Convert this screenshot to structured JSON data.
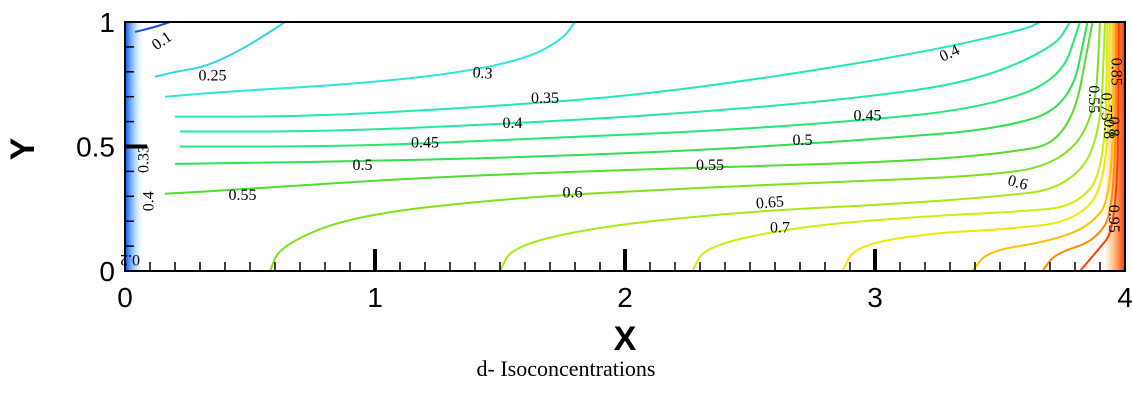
{
  "chart_data": {
    "type": "contour",
    "title": "",
    "xlabel": "X",
    "ylabel": "Y",
    "xlim": [
      0,
      4
    ],
    "ylim": [
      0,
      1
    ],
    "x_ticks": [
      "0",
      "1",
      "2",
      "3",
      "4"
    ],
    "y_ticks": [
      "0",
      "0.5",
      "1"
    ],
    "colormap": [
      "#0000cc",
      "#0080ff",
      "#00e0ff",
      "#00ff80",
      "#40e020",
      "#c8f000",
      "#ffe000",
      "#ff8000",
      "#ff2000"
    ],
    "contours": [
      {
        "level": "0.1",
        "color": "#1f4fe0",
        "points": [
          [
            0.04,
            0.96
          ],
          [
            0.12,
            0.98
          ],
          [
            0.18,
            1.0
          ]
        ]
      },
      {
        "level": "0.25",
        "color": "#2fd4e8",
        "points": [
          [
            0.12,
            0.78
          ],
          [
            0.2,
            0.8
          ],
          [
            0.32,
            0.82
          ],
          [
            0.45,
            0.88
          ],
          [
            0.58,
            0.96
          ],
          [
            0.64,
            1.0
          ]
        ]
      },
      {
        "level": "0.3",
        "color": "#2de6d8",
        "points": [
          [
            0.16,
            0.7
          ],
          [
            0.4,
            0.72
          ],
          [
            0.9,
            0.75
          ],
          [
            1.3,
            0.79
          ],
          [
            1.6,
            0.85
          ],
          [
            1.75,
            0.93
          ],
          [
            1.8,
            1.0
          ]
        ]
      },
      {
        "level": "0.35",
        "color": "#22e8b8",
        "points": [
          [
            0.2,
            0.62
          ],
          [
            0.7,
            0.62
          ],
          [
            1.3,
            0.65
          ],
          [
            2.0,
            0.7
          ],
          [
            2.6,
            0.78
          ],
          [
            3.2,
            0.88
          ],
          [
            3.6,
            0.97
          ],
          [
            3.66,
            1.0
          ]
        ]
      },
      {
        "level": "0.4",
        "color": "#22ea98",
        "points": [
          [
            0.22,
            0.56
          ],
          [
            0.8,
            0.56
          ],
          [
            1.5,
            0.59
          ],
          [
            2.2,
            0.63
          ],
          [
            2.9,
            0.69
          ],
          [
            3.4,
            0.76
          ],
          [
            3.72,
            0.9
          ],
          [
            3.78,
            1.0
          ]
        ]
      },
      {
        "level": "0.45",
        "color": "#22e878",
        "points": [
          [
            0.22,
            0.5
          ],
          [
            0.9,
            0.5
          ],
          [
            1.6,
            0.53
          ],
          [
            2.3,
            0.56
          ],
          [
            2.9,
            0.6
          ],
          [
            3.4,
            0.65
          ],
          [
            3.74,
            0.76
          ],
          [
            3.82,
            1.0
          ]
        ]
      },
      {
        "level": "0.5",
        "color": "#30e050",
        "points": [
          [
            0.2,
            0.43
          ],
          [
            0.9,
            0.44
          ],
          [
            1.7,
            0.46
          ],
          [
            2.4,
            0.49
          ],
          [
            3.0,
            0.53
          ],
          [
            3.5,
            0.57
          ],
          [
            3.78,
            0.66
          ],
          [
            3.85,
            1.0
          ]
        ]
      },
      {
        "level": "0.55",
        "color": "#50dd30",
        "points": [
          [
            0.16,
            0.31
          ],
          [
            0.5,
            0.33
          ],
          [
            1.1,
            0.37
          ],
          [
            1.8,
            0.4
          ],
          [
            2.5,
            0.42
          ],
          [
            3.1,
            0.44
          ],
          [
            3.5,
            0.47
          ],
          [
            3.78,
            0.52
          ],
          [
            3.87,
            1.0
          ]
        ]
      },
      {
        "level": "0.6",
        "color": "#80e020",
        "points": [
          [
            0.58,
            0.0
          ],
          [
            0.62,
            0.1
          ],
          [
            0.9,
            0.22
          ],
          [
            1.5,
            0.29
          ],
          [
            2.2,
            0.33
          ],
          [
            2.9,
            0.36
          ],
          [
            3.4,
            0.38
          ],
          [
            3.72,
            0.42
          ],
          [
            3.88,
            0.6
          ],
          [
            3.9,
            1.0
          ]
        ]
      },
      {
        "level": "0.65",
        "color": "#a8e818",
        "points": [
          [
            1.5,
            0.0
          ],
          [
            1.55,
            0.1
          ],
          [
            1.9,
            0.18
          ],
          [
            2.5,
            0.24
          ],
          [
            3.1,
            0.27
          ],
          [
            3.5,
            0.3
          ],
          [
            3.75,
            0.33
          ],
          [
            3.9,
            0.5
          ],
          [
            3.92,
            1.0
          ]
        ]
      },
      {
        "level": "0.7",
        "color": "#d0ec10",
        "points": [
          [
            2.27,
            0.0
          ],
          [
            2.32,
            0.1
          ],
          [
            2.7,
            0.18
          ],
          [
            3.2,
            0.22
          ],
          [
            3.6,
            0.24
          ],
          [
            3.8,
            0.26
          ],
          [
            3.92,
            0.4
          ],
          [
            3.93,
            1.0
          ]
        ]
      },
      {
        "level": "0.75",
        "color": "#f0e800",
        "points": [
          [
            2.87,
            0.0
          ],
          [
            2.92,
            0.1
          ],
          [
            3.2,
            0.15
          ],
          [
            3.55,
            0.17
          ],
          [
            3.8,
            0.2
          ],
          [
            3.93,
            0.35
          ],
          [
            3.94,
            1.0
          ]
        ]
      },
      {
        "level": "0.8",
        "color": "#ffc000",
        "points": [
          [
            3.39,
            0.0
          ],
          [
            3.45,
            0.08
          ],
          [
            3.7,
            0.12
          ],
          [
            3.86,
            0.18
          ],
          [
            3.95,
            0.3
          ],
          [
            3.955,
            1.0
          ]
        ]
      },
      {
        "level": "0.85",
        "color": "#ff8c00",
        "points": [
          [
            3.67,
            0.0
          ],
          [
            3.72,
            0.07
          ],
          [
            3.88,
            0.12
          ],
          [
            3.96,
            0.25
          ],
          [
            3.965,
            1.0
          ]
        ]
      },
      {
        "level": "0.95",
        "color": "#ff4000",
        "points": [
          [
            3.82,
            0.0
          ],
          [
            3.88,
            0.07
          ],
          [
            3.97,
            0.18
          ],
          [
            3.975,
            1.0
          ]
        ]
      }
    ],
    "contour_labels": [
      {
        "text": "0.1",
        "x": 0.15,
        "y": 0.92,
        "rotate": -35
      },
      {
        "text": "0.25",
        "x": 0.35,
        "y": 0.78,
        "rotate": 0
      },
      {
        "text": "0.3",
        "x": 1.43,
        "y": 0.79,
        "rotate": 5
      },
      {
        "text": "0.35",
        "x": 1.68,
        "y": 0.69,
        "rotate": 0
      },
      {
        "text": "0.4",
        "x": 3.3,
        "y": 0.87,
        "rotate": -25
      },
      {
        "text": "0.4",
        "x": 1.55,
        "y": 0.59,
        "rotate": 0
      },
      {
        "text": "0.45",
        "x": 1.2,
        "y": 0.51,
        "rotate": 0
      },
      {
        "text": "0.45",
        "x": 2.97,
        "y": 0.62,
        "rotate": 0
      },
      {
        "text": "0.5",
        "x": 0.95,
        "y": 0.42,
        "rotate": 0
      },
      {
        "text": "0.5",
        "x": 2.71,
        "y": 0.52,
        "rotate": 0
      },
      {
        "text": "0.55",
        "x": 0.47,
        "y": 0.3,
        "rotate": 0
      },
      {
        "text": "0.55",
        "x": 2.34,
        "y": 0.42,
        "rotate": 0
      },
      {
        "text": "0.6",
        "x": 1.79,
        "y": 0.31,
        "rotate": 0
      },
      {
        "text": "0.6",
        "x": 3.57,
        "y": 0.35,
        "rotate": 15
      },
      {
        "text": "0.65",
        "x": 2.58,
        "y": 0.27,
        "rotate": -5
      },
      {
        "text": "0.7",
        "x": 2.62,
        "y": 0.17,
        "rotate": 0
      },
      {
        "text": "0.33",
        "x": 0.08,
        "y": 0.45,
        "rotate": -90
      },
      {
        "text": "0.4",
        "x": 0.1,
        "y": 0.28,
        "rotate": -90
      },
      {
        "text": "0.2",
        "x": 0.02,
        "y": 0.05,
        "rotate": 180
      },
      {
        "text": "0.55",
        "x": 3.87,
        "y": 0.69,
        "rotate": 90
      },
      {
        "text": "0.75",
        "x": 3.92,
        "y": 0.66,
        "rotate": 90
      },
      {
        "text": "0.8",
        "x": 3.93,
        "y": 0.57,
        "rotate": 90
      },
      {
        "text": "0.85",
        "x": 3.96,
        "y": 0.8,
        "rotate": 90
      },
      {
        "text": "0.8",
        "x": 3.95,
        "y": 0.58,
        "rotate": 90
      },
      {
        "text": "0.95",
        "x": 3.95,
        "y": 0.21,
        "rotate": 90
      }
    ]
  },
  "caption": "d- Isoconcentrations"
}
